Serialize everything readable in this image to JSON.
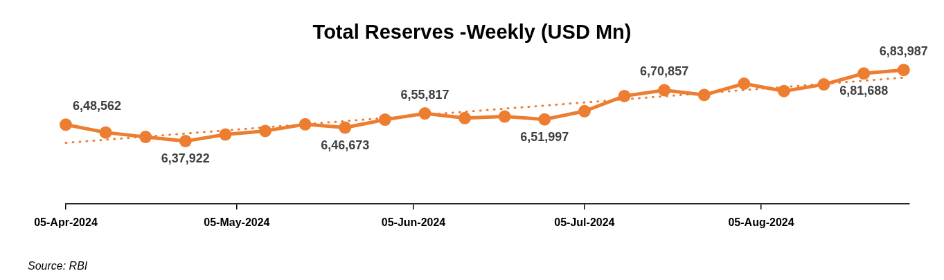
{
  "chart_data": {
    "type": "line",
    "title": "Total Reserves -Weekly (USD Mn)",
    "annotations": [
      "Source: RBI"
    ],
    "x": [
      "2024-04-05",
      "2024-04-12",
      "2024-04-19",
      "2024-04-26",
      "2024-05-03",
      "2024-05-10",
      "2024-05-17",
      "2024-05-24",
      "2024-05-31",
      "2024-06-07",
      "2024-06-14",
      "2024-06-21",
      "2024-06-28",
      "2024-07-05",
      "2024-07-12",
      "2024-07-19",
      "2024-07-26",
      "2024-08-02",
      "2024-08-09",
      "2024-08-16",
      "2024-08-23",
      "2024-08-30"
    ],
    "xlim": [
      "2024-04-05",
      "2024-08-31"
    ],
    "xticks": [
      {
        "value": "2024-04-05",
        "label": "05-Apr-2024"
      },
      {
        "value": "2024-05-05",
        "label": "05-May-2024"
      },
      {
        "value": "2024-06-05",
        "label": "05-Jun-2024"
      },
      {
        "value": "2024-07-05",
        "label": "05-Jul-2024"
      },
      {
        "value": "2024-08-05",
        "label": "05-Aug-2024"
      }
    ],
    "series": [
      {
        "color": "#ed7d31",
        "marker": "circle",
        "line_style": "solid",
        "values": [
          648562,
          643500,
          640600,
          637922,
          642200,
          644500,
          648800,
          646673,
          651800,
          655817,
          652800,
          653800,
          651997,
          657300,
          667100,
          670857,
          667800,
          675100,
          670300,
          674600,
          681688,
          683987
        ],
        "value_labels": [
          "6,48,562",
          null,
          null,
          "6,37,922",
          null,
          null,
          null,
          "6,46,673",
          null,
          "6,55,817",
          null,
          null,
          "6,51,997",
          null,
          null,
          "6,70,857",
          null,
          null,
          null,
          null,
          "6,81,688",
          "6,83,987"
        ]
      },
      {
        "color": "#ed7d31",
        "marker": "none",
        "line_style": "dotted",
        "x": [
          "2024-04-05",
          "2024-08-30"
        ],
        "values": [
          636800,
          679000
        ]
      }
    ]
  }
}
